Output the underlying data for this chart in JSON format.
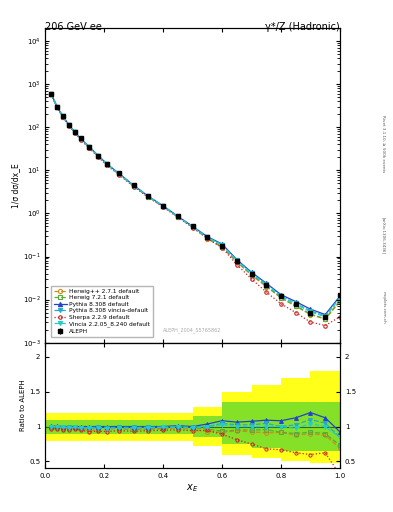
{
  "title_left": "206 GeV ee",
  "title_right": "γ*/Z (Hadronic)",
  "xlabel": "x_{E}",
  "ylabel_top": "1/σ dσ/dx_E",
  "ylabel_bot": "Ratio to ALEPH",
  "watermark": "ALEPH_2004_S5765862",
  "right_label1": "Rivet 3.1.10, ≥ 500k events",
  "right_label2": "[arXiv:1306.3436]",
  "right_label3": "mcplots.cern.ch",
  "xE": [
    0.02,
    0.04,
    0.06,
    0.08,
    0.1,
    0.12,
    0.15,
    0.18,
    0.21,
    0.25,
    0.3,
    0.35,
    0.4,
    0.45,
    0.5,
    0.55,
    0.6,
    0.65,
    0.7,
    0.75,
    0.8,
    0.85,
    0.9,
    0.95,
    1.0
  ],
  "ALEPH_y": [
    600,
    300,
    180,
    115,
    78,
    55,
    35,
    22,
    14,
    8.5,
    4.5,
    2.5,
    1.5,
    0.85,
    0.5,
    0.28,
    0.18,
    0.08,
    0.04,
    0.022,
    0.012,
    0.008,
    0.005,
    0.004,
    0.013
  ],
  "ALEPH_yerr": [
    20,
    10,
    6,
    4,
    3,
    2,
    1.2,
    0.8,
    0.5,
    0.3,
    0.15,
    0.08,
    0.05,
    0.03,
    0.018,
    0.01,
    0.007,
    0.003,
    0.002,
    0.001,
    0.0005,
    0.0003,
    0.0002,
    0.0002,
    0.001
  ],
  "Herwigpp_y": [
    590,
    295,
    175,
    112,
    76,
    53,
    33,
    21,
    13.5,
    8.2,
    4.3,
    2.4,
    1.45,
    0.83,
    0.48,
    0.26,
    0.165,
    0.075,
    0.037,
    0.02,
    0.011,
    0.007,
    0.0045,
    0.0035,
    0.009
  ],
  "Herwig721_y": [
    595,
    298,
    177,
    113,
    77,
    54,
    34,
    21.5,
    13.7,
    8.3,
    4.35,
    2.42,
    1.47,
    0.84,
    0.49,
    0.27,
    0.168,
    0.076,
    0.038,
    0.021,
    0.011,
    0.0072,
    0.0046,
    0.0036,
    0.0095
  ],
  "Pythia8_y": [
    605,
    302,
    180,
    115,
    78,
    55,
    35,
    22,
    14,
    8.5,
    4.5,
    2.5,
    1.5,
    0.86,
    0.5,
    0.29,
    0.195,
    0.085,
    0.043,
    0.024,
    0.013,
    0.009,
    0.006,
    0.0045,
    0.012
  ],
  "Pythia8v_y": [
    600,
    300,
    178,
    114,
    77,
    54,
    34.5,
    21.8,
    13.8,
    8.4,
    4.45,
    2.48,
    1.49,
    0.85,
    0.495,
    0.28,
    0.188,
    0.082,
    0.041,
    0.023,
    0.012,
    0.0082,
    0.0055,
    0.0042,
    0.011
  ],
  "Sherpa_y": [
    580,
    290,
    172,
    110,
    75,
    52,
    32.5,
    20.5,
    13,
    8.0,
    4.2,
    2.35,
    1.42,
    0.81,
    0.47,
    0.265,
    0.16,
    0.065,
    0.03,
    0.015,
    0.008,
    0.005,
    0.003,
    0.0025,
    0.004
  ],
  "Vincia_y": [
    598,
    299,
    178,
    113,
    77,
    54,
    34.2,
    21.6,
    13.6,
    8.3,
    4.4,
    2.46,
    1.48,
    0.84,
    0.49,
    0.278,
    0.185,
    0.08,
    0.04,
    0.022,
    0.012,
    0.0078,
    0.0052,
    0.004,
    0.011
  ],
  "ratio_xE": [
    0.02,
    0.04,
    0.06,
    0.08,
    0.1,
    0.12,
    0.15,
    0.18,
    0.21,
    0.25,
    0.3,
    0.35,
    0.4,
    0.45,
    0.5,
    0.55,
    0.6,
    0.65,
    0.7,
    0.75,
    0.8,
    0.85,
    0.9,
    0.95,
    1.0
  ],
  "ratio_Herwigpp": [
    0.98,
    0.985,
    0.972,
    0.974,
    0.974,
    0.964,
    0.943,
    0.955,
    0.964,
    0.965,
    0.956,
    0.96,
    0.967,
    0.976,
    0.96,
    0.929,
    0.917,
    0.938,
    0.925,
    0.909,
    0.917,
    0.875,
    0.9,
    0.875,
    0.692
  ],
  "ratio_Herwig721": [
    0.992,
    0.993,
    0.983,
    0.983,
    0.987,
    0.982,
    0.971,
    0.977,
    0.979,
    0.976,
    0.967,
    0.968,
    0.98,
    0.988,
    0.98,
    0.964,
    0.933,
    0.95,
    0.95,
    0.955,
    0.917,
    0.9,
    0.92,
    0.9,
    0.731
  ],
  "ratio_Pythia8": [
    1.008,
    1.007,
    1.0,
    1.0,
    1.0,
    1.0,
    1.0,
    1.0,
    1.0,
    1.0,
    1.0,
    1.0,
    1.0,
    1.012,
    1.0,
    1.036,
    1.083,
    1.063,
    1.075,
    1.091,
    1.083,
    1.125,
    1.2,
    1.125,
    0.923
  ],
  "ratio_Pythia8v": [
    1.0,
    1.0,
    0.989,
    0.991,
    0.987,
    0.982,
    0.986,
    0.991,
    0.986,
    0.988,
    0.989,
    0.992,
    0.993,
    1.0,
    0.99,
    1.0,
    1.044,
    1.025,
    1.025,
    1.045,
    1.0,
    1.025,
    1.1,
    1.05,
    0.846
  ],
  "ratio_Sherpa": [
    0.967,
    0.967,
    0.956,
    0.957,
    0.962,
    0.945,
    0.929,
    0.932,
    0.929,
    0.941,
    0.933,
    0.94,
    0.947,
    0.953,
    0.94,
    0.946,
    0.889,
    0.813,
    0.75,
    0.682,
    0.667,
    0.625,
    0.6,
    0.625,
    0.308
  ],
  "ratio_Vincia": [
    0.997,
    0.997,
    0.989,
    0.983,
    0.987,
    0.982,
    0.977,
    0.982,
    0.971,
    0.976,
    0.978,
    0.984,
    0.987,
    0.988,
    0.98,
    0.993,
    1.028,
    1.0,
    1.0,
    1.0,
    1.0,
    0.975,
    1.04,
    1.0,
    0.846
  ],
  "colors": {
    "ALEPH": "#000000",
    "Herwigpp": "#d4891a",
    "Herwig721": "#5aaa3c",
    "Pythia8": "#2244cc",
    "Pythia8v": "#22aacc",
    "Sherpa": "#cc2222",
    "Vincia": "#22cccc"
  }
}
